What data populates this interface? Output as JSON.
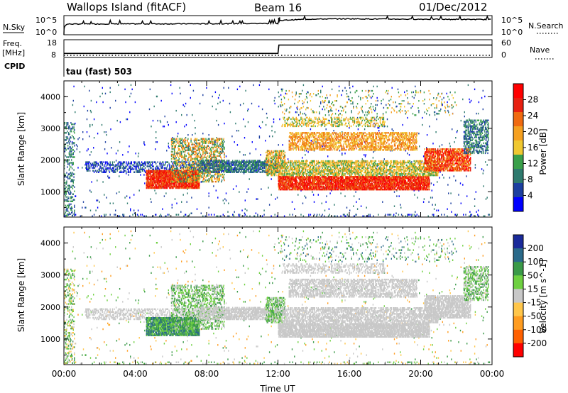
{
  "header": {
    "station": "Wallops Island (fitACF)",
    "beam": "Beam 16",
    "date": "01/Dec/2012"
  },
  "noise_panel": {
    "left_label": "N.Sky",
    "left_ticks": [
      "10^5",
      "10^0"
    ],
    "right_label": "N.Search",
    "right_ticks": [
      "10^5",
      "10^0"
    ]
  },
  "freq_panel": {
    "left_label_1": "Freq.",
    "left_label_2": "[MHz]",
    "left_ticks": [
      "18",
      "8"
    ],
    "right_label": "Nave",
    "right_ticks": [
      "60",
      "0"
    ],
    "cpid_label": "CPID",
    "cpid_value": "tau (fast) 503"
  },
  "colors": {
    "power": [
      "#0000ff",
      "#1c3fa0",
      "#2e7a6e",
      "#3aa04a",
      "#f0c830",
      "#f5a020",
      "#f06a10",
      "#e82010",
      "#ff0000"
    ],
    "velocity": [
      "#ff0000",
      "#ff6000",
      "#ff9c20",
      "#ffc64a",
      "#c8c8c8",
      "#6ed040",
      "#3a9a48",
      "#2a6a8a",
      "#1a2a9a"
    ]
  },
  "chart_data": [
    {
      "type": "line",
      "name": "noise",
      "xlabel": "",
      "ylabel": "",
      "x_range_hours": [
        0,
        24
      ],
      "y_scale": "log",
      "ylim": [
        "10^0",
        "10^5"
      ],
      "series": [
        {
          "name": "N.Sky",
          "x": [
            0,
            0.2,
            2,
            4,
            6,
            8,
            10,
            12,
            12.1,
            14,
            16,
            18,
            20,
            22,
            24
          ],
          "y": [
            1,
            600,
            650,
            650,
            700,
            700,
            800,
            900,
            5000,
            12000,
            14000,
            12000,
            11000,
            10000,
            9000
          ]
        },
        {
          "name": "N.Search",
          "style": "dotted",
          "x": [
            0,
            6,
            12,
            18,
            24
          ],
          "y": [
            1,
            1,
            1,
            1,
            1
          ]
        }
      ]
    },
    {
      "type": "line",
      "name": "frequency",
      "x_range_hours": [
        0,
        24
      ],
      "ylim_left": [
        8,
        18
      ],
      "ylim_right": [
        0,
        60
      ],
      "series": [
        {
          "name": "Freq.",
          "x": [
            0,
            0.1,
            12,
            12.05,
            24
          ],
          "y": [
            10.3,
            10.3,
            10.3,
            15.0,
            15.0
          ]
        },
        {
          "name": "Nave",
          "style": "dotted",
          "x": [
            0,
            24
          ],
          "y": [
            0,
            0
          ]
        }
      ]
    },
    {
      "type": "heatmap",
      "name": "power",
      "xlabel": "",
      "ylabel": "Slant Range [km]",
      "xlim_hours": [
        0,
        24
      ],
      "ylim_km": [
        200,
        4500
      ],
      "yticks": [
        "1000",
        "2000",
        "3000",
        "4000"
      ],
      "colorbar_label": "Power [dB]",
      "colorbar_ticks": [
        "4",
        "8",
        "12",
        "16",
        "20",
        "24",
        "28"
      ],
      "colorbar_range": [
        0,
        30
      ]
    },
    {
      "type": "heatmap",
      "name": "velocity",
      "xlabel": "Time UT",
      "ylabel": "Slant Range [km]",
      "xlim_hours": [
        0,
        24
      ],
      "ylim_km": [
        200,
        4500
      ],
      "xticks": [
        "00:00",
        "04:00",
        "08:00",
        "12:00",
        "16:00",
        "20:00",
        "00:00"
      ],
      "yticks": [
        "1000",
        "2000",
        "3000",
        "4000"
      ],
      "colorbar_label": "Velocity [m s^-1]",
      "colorbar_ticks": [
        "200",
        "100",
        "50",
        "15",
        "-15",
        "-50",
        "-100",
        "-200"
      ],
      "colorbar_range": [
        -250,
        250
      ]
    }
  ]
}
